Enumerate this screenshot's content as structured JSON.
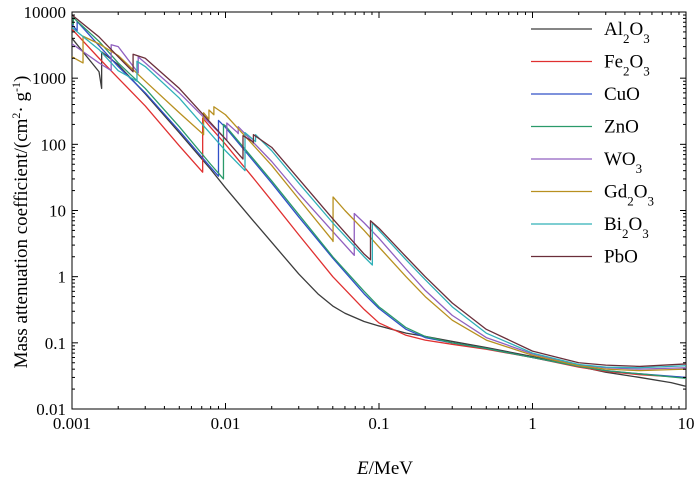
{
  "chart_data": {
    "type": "line",
    "xlabel": {
      "italic": "E",
      "rest": "/MeV"
    },
    "ylabel": {
      "main": "Mass attenuation coefficient/(cm",
      "sup1": "2",
      "mid": "· g",
      "sup2": "-1",
      "end": ")"
    },
    "x_scale": "log",
    "y_scale": "log",
    "xlim": [
      0.001,
      10
    ],
    "ylim": [
      0.01,
      10000
    ],
    "x_ticks": [
      {
        "value": 0.001,
        "label": "0.001"
      },
      {
        "value": 0.01,
        "label": "0.01"
      },
      {
        "value": 0.1,
        "label": "0.1"
      },
      {
        "value": 1,
        "label": "1"
      },
      {
        "value": 10,
        "label": "10"
      }
    ],
    "y_ticks": [
      {
        "value": 0.01,
        "label": "0.01"
      },
      {
        "value": 0.1,
        "label": "0.1"
      },
      {
        "value": 1,
        "label": "1"
      },
      {
        "value": 10,
        "label": "10"
      },
      {
        "value": 100,
        "label": "100"
      },
      {
        "value": 1000,
        "label": "1000"
      },
      {
        "value": 10000,
        "label": "10000"
      }
    ],
    "grid": false,
    "legend_position": "top-right",
    "series": [
      {
        "name": "Al2O3",
        "label_parts": [
          "Al",
          "2",
          "O",
          "3"
        ],
        "color": "#3c3c3c",
        "points": [
          [
            0.001,
            4000
          ],
          [
            0.0015,
            1250
          ],
          [
            0.00156,
            700
          ],
          [
            0.00156,
            2500
          ],
          [
            0.002,
            1600
          ],
          [
            0.003,
            580
          ],
          [
            0.005,
            150
          ],
          [
            0.008,
            42
          ],
          [
            0.01,
            22
          ],
          [
            0.015,
            7.2
          ],
          [
            0.02,
            3.3
          ],
          [
            0.03,
            1.1
          ],
          [
            0.04,
            0.55
          ],
          [
            0.05,
            0.36
          ],
          [
            0.06,
            0.28
          ],
          [
            0.08,
            0.21
          ],
          [
            0.1,
            0.18
          ],
          [
            0.15,
            0.14
          ],
          [
            0.2,
            0.125
          ],
          [
            0.3,
            0.105
          ],
          [
            0.5,
            0.085
          ],
          [
            1,
            0.062
          ],
          [
            2,
            0.044
          ],
          [
            3,
            0.036
          ],
          [
            5,
            0.03
          ],
          [
            8,
            0.025
          ],
          [
            10,
            0.022
          ]
        ]
      },
      {
        "name": "Fe2O3",
        "label_parts": [
          "Fe",
          "2",
          "O",
          "3"
        ],
        "color": "#e03030",
        "points": [
          [
            0.001,
            5500
          ],
          [
            0.0015,
            2000
          ],
          [
            0.002,
            1000
          ],
          [
            0.003,
            380
          ],
          [
            0.005,
            95
          ],
          [
            0.0071,
            38
          ],
          [
            0.0071,
            250
          ],
          [
            0.008,
            180
          ],
          [
            0.01,
            100
          ],
          [
            0.015,
            32
          ],
          [
            0.02,
            14
          ],
          [
            0.03,
            4.3
          ],
          [
            0.05,
            1.0
          ],
          [
            0.08,
            0.32
          ],
          [
            0.1,
            0.2
          ],
          [
            0.15,
            0.13
          ],
          [
            0.2,
            0.11
          ],
          [
            0.3,
            0.095
          ],
          [
            0.5,
            0.08
          ],
          [
            1,
            0.06
          ],
          [
            2,
            0.043
          ],
          [
            3,
            0.037
          ],
          [
            5,
            0.033
          ],
          [
            10,
            0.03
          ]
        ]
      },
      {
        "name": "CuO",
        "label_parts": [
          "CuO"
        ],
        "color": "#3050c8",
        "points": [
          [
            0.001,
            6500
          ],
          [
            0.00108,
            5200
          ],
          [
            0.00108,
            7200
          ],
          [
            0.0015,
            3100
          ],
          [
            0.002,
            1500
          ],
          [
            0.003,
            600
          ],
          [
            0.005,
            160
          ],
          [
            0.008,
            45
          ],
          [
            0.009,
            33
          ],
          [
            0.009,
            230
          ],
          [
            0.01,
            180
          ],
          [
            0.015,
            58
          ],
          [
            0.02,
            26
          ],
          [
            0.03,
            8
          ],
          [
            0.05,
            1.9
          ],
          [
            0.08,
            0.55
          ],
          [
            0.1,
            0.33
          ],
          [
            0.15,
            0.16
          ],
          [
            0.2,
            0.12
          ],
          [
            0.3,
            0.1
          ],
          [
            0.5,
            0.082
          ],
          [
            1,
            0.06
          ],
          [
            2,
            0.044
          ],
          [
            3,
            0.038
          ],
          [
            5,
            0.034
          ],
          [
            10,
            0.03
          ]
        ]
      },
      {
        "name": "ZnO",
        "label_parts": [
          "ZnO"
        ],
        "color": "#2a9a6a",
        "points": [
          [
            0.001,
            7000
          ],
          [
            0.00102,
            6500
          ],
          [
            0.00102,
            8200
          ],
          [
            0.0015,
            3600
          ],
          [
            0.002,
            1700
          ],
          [
            0.003,
            700
          ],
          [
            0.005,
            185
          ],
          [
            0.008,
            50
          ],
          [
            0.0097,
            30
          ],
          [
            0.0097,
            200
          ],
          [
            0.01,
            190
          ],
          [
            0.015,
            62
          ],
          [
            0.02,
            28
          ],
          [
            0.03,
            8.7
          ],
          [
            0.05,
            2.0
          ],
          [
            0.08,
            0.6
          ],
          [
            0.1,
            0.35
          ],
          [
            0.15,
            0.17
          ],
          [
            0.2,
            0.125
          ],
          [
            0.3,
            0.1
          ],
          [
            0.5,
            0.082
          ],
          [
            1,
            0.06
          ],
          [
            2,
            0.044
          ],
          [
            3,
            0.038
          ],
          [
            5,
            0.034
          ],
          [
            10,
            0.029
          ]
        ]
      },
      {
        "name": "WO3",
        "label_parts": [
          "WO",
          "3"
        ],
        "color": "#9060c0",
        "points": [
          [
            0.001,
            3300
          ],
          [
            0.0015,
            1700
          ],
          [
            0.0018,
            1300
          ],
          [
            0.0018,
            3200
          ],
          [
            0.002,
            3000
          ],
          [
            0.0027,
            1200
          ],
          [
            0.0027,
            2100
          ],
          [
            0.003,
            1700
          ],
          [
            0.005,
            600
          ],
          [
            0.01,
            120
          ],
          [
            0.0102,
            115
          ],
          [
            0.0102,
            210
          ],
          [
            0.012,
            150
          ],
          [
            0.0121,
            145
          ],
          [
            0.0121,
            185
          ],
          [
            0.015,
            110
          ],
          [
            0.02,
            55
          ],
          [
            0.03,
            18
          ],
          [
            0.05,
            4.8
          ],
          [
            0.069,
            2.1
          ],
          [
            0.069,
            9.0
          ],
          [
            0.08,
            6.5
          ],
          [
            0.1,
            3.8
          ],
          [
            0.15,
            1.3
          ],
          [
            0.2,
            0.62
          ],
          [
            0.3,
            0.26
          ],
          [
            0.5,
            0.12
          ],
          [
            1,
            0.068
          ],
          [
            2,
            0.046
          ],
          [
            3,
            0.042
          ],
          [
            5,
            0.04
          ],
          [
            10,
            0.042
          ]
        ]
      },
      {
        "name": "Gd2O3",
        "label_parts": [
          "Gd",
          "2",
          "O",
          "3"
        ],
        "color": "#b89020",
        "points": [
          [
            0.001,
            2100
          ],
          [
            0.00118,
            1700
          ],
          [
            0.00118,
            4300
          ],
          [
            0.0015,
            3300
          ],
          [
            0.002,
            2200
          ],
          [
            0.003,
            900
          ],
          [
            0.005,
            300
          ],
          [
            0.0072,
            140
          ],
          [
            0.0072,
            300
          ],
          [
            0.0078,
            240
          ],
          [
            0.0078,
            330
          ],
          [
            0.0084,
            280
          ],
          [
            0.0084,
            370
          ],
          [
            0.01,
            280
          ],
          [
            0.015,
            100
          ],
          [
            0.02,
            48
          ],
          [
            0.03,
            15
          ],
          [
            0.05,
            3.5
          ],
          [
            0.0502,
            3.4
          ],
          [
            0.0502,
            16
          ],
          [
            0.06,
            10
          ],
          [
            0.08,
            5
          ],
          [
            0.1,
            2.8
          ],
          [
            0.15,
            1
          ],
          [
            0.2,
            0.5
          ],
          [
            0.3,
            0.22
          ],
          [
            0.5,
            0.11
          ],
          [
            1,
            0.065
          ],
          [
            2,
            0.045
          ],
          [
            3,
            0.04
          ],
          [
            5,
            0.038
          ],
          [
            10,
            0.04
          ]
        ]
      },
      {
        "name": "Bi2O3",
        "label_parts": [
          "Bi",
          "2",
          "O",
          "3"
        ],
        "color": "#30b0b8",
        "points": [
          [
            0.001,
            5800
          ],
          [
            0.0015,
            2700
          ],
          [
            0.002,
            1300
          ],
          [
            0.00265,
            900
          ],
          [
            0.00265,
            1800
          ],
          [
            0.003,
            1500
          ],
          [
            0.005,
            500
          ],
          [
            0.01,
            80
          ],
          [
            0.0134,
            40
          ],
          [
            0.0134,
            150
          ],
          [
            0.0157,
            110
          ],
          [
            0.0157,
            140
          ],
          [
            0.02,
            80
          ],
          [
            0.03,
            26
          ],
          [
            0.05,
            6.5
          ],
          [
            0.08,
            2
          ],
          [
            0.0905,
            1.5
          ],
          [
            0.0905,
            6.5
          ],
          [
            0.1,
            5
          ],
          [
            0.15,
            1.8
          ],
          [
            0.2,
            0.9
          ],
          [
            0.3,
            0.35
          ],
          [
            0.5,
            0.14
          ],
          [
            1,
            0.07
          ],
          [
            2,
            0.047
          ],
          [
            3,
            0.043
          ],
          [
            5,
            0.042
          ],
          [
            10,
            0.045
          ]
        ]
      },
      {
        "name": "PbO",
        "label_parts": [
          "PbO"
        ],
        "color": "#6a2e3a",
        "points": [
          [
            0.001,
            9000
          ],
          [
            0.0015,
            4200
          ],
          [
            0.002,
            2100
          ],
          [
            0.0025,
            1250
          ],
          [
            0.0025,
            2300
          ],
          [
            0.003,
            2000
          ],
          [
            0.005,
            700
          ],
          [
            0.01,
            120
          ],
          [
            0.013,
            60
          ],
          [
            0.013,
            135
          ],
          [
            0.015,
            110
          ],
          [
            0.0152,
            105
          ],
          [
            0.0152,
            140
          ],
          [
            0.02,
            90
          ],
          [
            0.03,
            30
          ],
          [
            0.05,
            7.5
          ],
          [
            0.08,
            2.2
          ],
          [
            0.088,
            1.8
          ],
          [
            0.088,
            7.0
          ],
          [
            0.1,
            5.4
          ],
          [
            0.15,
            2.0
          ],
          [
            0.2,
            1.0
          ],
          [
            0.3,
            0.4
          ],
          [
            0.5,
            0.16
          ],
          [
            1,
            0.075
          ],
          [
            2,
            0.05
          ],
          [
            3,
            0.046
          ],
          [
            5,
            0.044
          ],
          [
            10,
            0.048
          ]
        ]
      }
    ]
  }
}
